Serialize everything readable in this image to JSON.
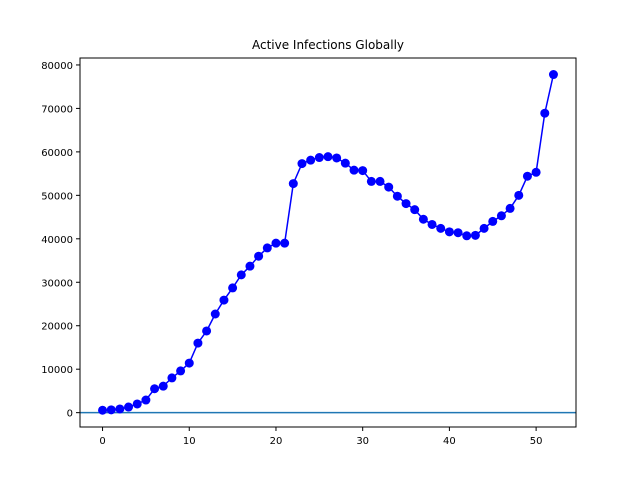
{
  "chart_data": {
    "type": "line",
    "title": "Active Infections Globally",
    "xlabel": "",
    "ylabel": "",
    "xlim": [
      -2.6,
      54.6
    ],
    "ylim": [
      -3300,
      81600
    ],
    "x_ticks": [
      0,
      10,
      20,
      30,
      40,
      50
    ],
    "y_ticks": [
      0,
      10000,
      20000,
      30000,
      40000,
      50000,
      60000,
      70000,
      80000
    ],
    "grid": false,
    "legend": "none",
    "reference_line": {
      "y": 0,
      "color": "#1f77b4"
    },
    "series": [
      {
        "color": "#0000ff",
        "marker": "circle",
        "x": [
          0,
          1,
          2,
          3,
          4,
          5,
          6,
          7,
          8,
          9,
          10,
          11,
          12,
          13,
          14,
          15,
          16,
          17,
          18,
          19,
          20,
          21,
          22,
          23,
          24,
          25,
          26,
          27,
          28,
          29,
          30,
          31,
          32,
          33,
          34,
          35,
          36,
          37,
          38,
          39,
          40,
          41,
          42,
          43,
          44,
          45,
          46,
          47,
          48,
          49,
          50,
          51,
          52
        ],
        "values": [
          555,
          650,
          850,
          1300,
          2000,
          2900,
          5500,
          6100,
          8000,
          9600,
          11400,
          16000,
          18800,
          22700,
          25900,
          28700,
          31700,
          33700,
          36000,
          37900,
          39000,
          39000,
          52700,
          57300,
          58100,
          58700,
          58900,
          58600,
          57400,
          55800,
          55700,
          53200,
          53200,
          51900,
          49800,
          48100,
          46700,
          44500,
          43300,
          42400,
          41600,
          41400,
          40700,
          40800,
          42400,
          44000,
          45300,
          47000,
          50000,
          54400,
          55300,
          68900,
          77800
        ]
      }
    ]
  }
}
